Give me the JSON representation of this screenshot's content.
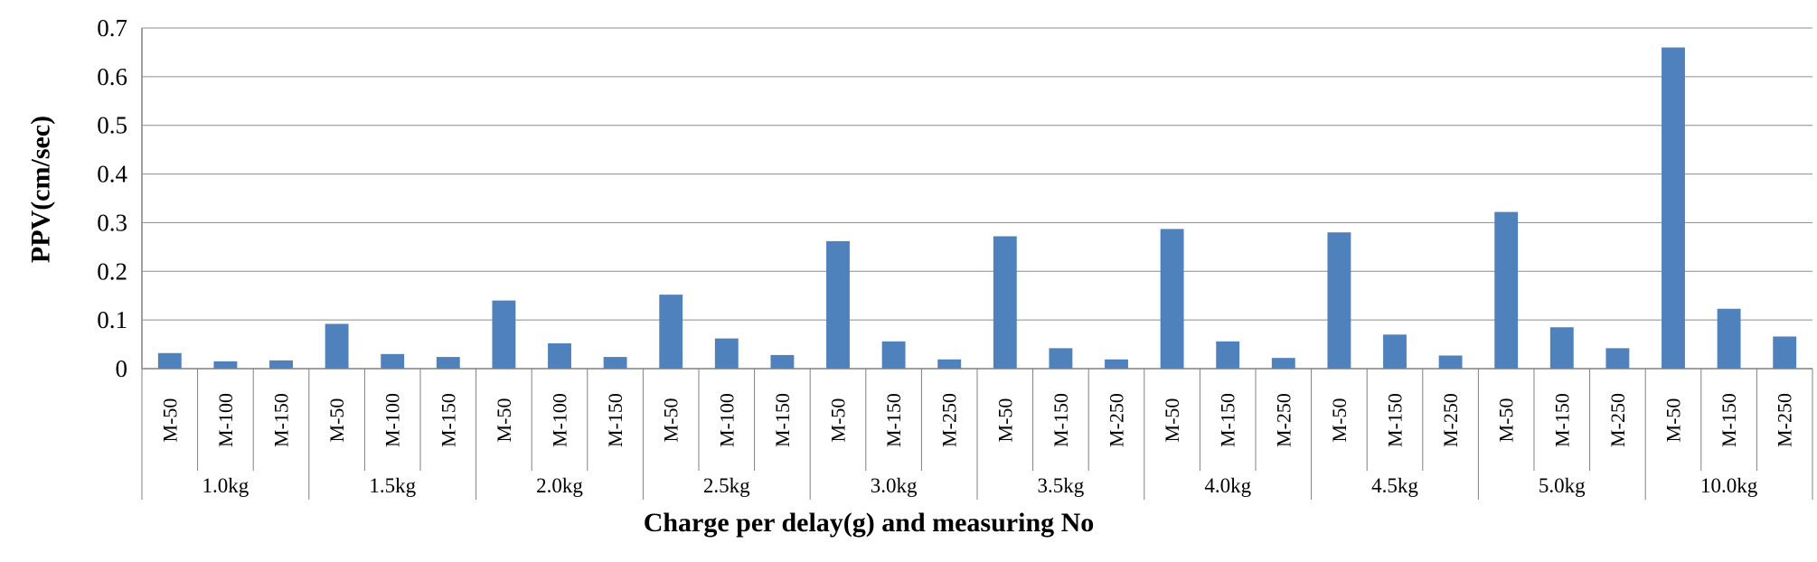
{
  "chart_data": {
    "type": "bar",
    "xlabel": "Charge per delay(g) and measuring No",
    "ylabel": "PPV(cm/sec)",
    "ylim": [
      0,
      0.7
    ],
    "yticks": [
      "0",
      "0.1",
      "0.2",
      "0.3",
      "0.4",
      "0.5",
      "0.6",
      "0.7"
    ],
    "grid": true,
    "legend": "none",
    "bar_color": "#4f81bd",
    "groups": [
      {
        "label": "1.0kg",
        "categories": [
          "M-50",
          "M-100",
          "M-150"
        ],
        "values": [
          0.032,
          0.015,
          0.017
        ]
      },
      {
        "label": "1.5kg",
        "categories": [
          "M-50",
          "M-100",
          "M-150"
        ],
        "values": [
          0.092,
          0.03,
          0.024
        ]
      },
      {
        "label": "2.0kg",
        "categories": [
          "M-50",
          "M-100",
          "M-150"
        ],
        "values": [
          0.14,
          0.052,
          0.024
        ]
      },
      {
        "label": "2.5kg",
        "categories": [
          "M-50",
          "M-100",
          "M-150"
        ],
        "values": [
          0.152,
          0.062,
          0.028
        ]
      },
      {
        "label": "3.0kg",
        "categories": [
          "M-50",
          "M-150",
          "M-250"
        ],
        "values": [
          0.262,
          0.056,
          0.019
        ]
      },
      {
        "label": "3.5kg",
        "categories": [
          "M-50",
          "M-150",
          "M-250"
        ],
        "values": [
          0.272,
          0.042,
          0.019
        ]
      },
      {
        "label": "4.0kg",
        "categories": [
          "M-50",
          "M-150",
          "M-250"
        ],
        "values": [
          0.287,
          0.056,
          0.022
        ]
      },
      {
        "label": "4.5kg",
        "categories": [
          "M-50",
          "M-150",
          "M-250"
        ],
        "values": [
          0.28,
          0.07,
          0.027
        ]
      },
      {
        "label": "5.0kg",
        "categories": [
          "M-50",
          "M-150",
          "M-250"
        ],
        "values": [
          0.322,
          0.085,
          0.042
        ]
      },
      {
        "label": "10.0kg",
        "categories": [
          "M-50",
          "M-150",
          "M-250"
        ],
        "values": [
          0.66,
          0.123,
          0.066
        ]
      }
    ]
  }
}
